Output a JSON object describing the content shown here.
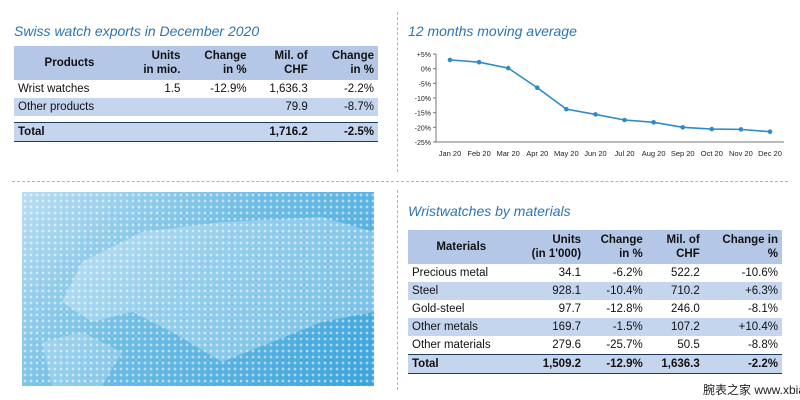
{
  "exports": {
    "title": "Swiss watch exports in December 2020",
    "headers": [
      "Products",
      "Units\nin mio.",
      "Change\nin %",
      "Mil. of\nCHF",
      "Change\nin %"
    ],
    "rows": [
      [
        "Wrist watches",
        "1.5",
        "-12.9%",
        "1,636.3",
        "-2.2%"
      ],
      [
        "Other products",
        "",
        "",
        "79.9",
        "-8.7%"
      ]
    ],
    "total": [
      "Total",
      "",
      "",
      "1,716.2",
      "-2.5%"
    ]
  },
  "materials": {
    "title": "Wristwatches by materials",
    "headers": [
      "Materials",
      "Units\n(in 1'000)",
      "Change\nin %",
      "Mil. of\nCHF",
      "Change in\n%"
    ],
    "rows": [
      [
        "Precious metal",
        "34.1",
        "-6.2%",
        "522.2",
        "-10.6%"
      ],
      [
        "Steel",
        "928.1",
        "-10.4%",
        "710.2",
        "+6.3%"
      ],
      [
        "Gold-steel",
        "97.7",
        "-12.8%",
        "246.0",
        "-8.1%"
      ],
      [
        "Other metals",
        "169.7",
        "-1.5%",
        "107.2",
        "+10.4%"
      ],
      [
        "Other materials",
        "279.6",
        "-25.7%",
        "50.5",
        "-8.8%"
      ]
    ],
    "total": [
      "Total",
      "1,509.2",
      "-12.9%",
      "1,636.3",
      "-2.2%"
    ]
  },
  "chart_data": {
    "type": "line",
    "title": "12 months moving average",
    "x": [
      "Jan 20",
      "Feb 20",
      "Mar 20",
      "Apr 20",
      "May 20",
      "Jun 20",
      "Jul 20",
      "Aug 20",
      "Sep 20",
      "Oct 20",
      "Nov 20",
      "Dec 20"
    ],
    "series": [
      {
        "values": [
          3.0,
          2.2,
          0.2,
          -6.5,
          -13.8,
          -15.6,
          -17.5,
          -18.3,
          -20.0,
          -20.6,
          -20.7,
          -21.5
        ]
      }
    ],
    "yticks": [
      "+5%",
      "0%",
      "-5%",
      "-10%",
      "-15%",
      "-20%",
      "-25%"
    ],
    "ylim": [
      -25,
      5
    ],
    "grid": false,
    "legend": "none",
    "color": "#2e8bc9"
  },
  "map": {
    "description_icon": "world-map-icon"
  },
  "watermark": "腕表之家 www.xbiao.com"
}
